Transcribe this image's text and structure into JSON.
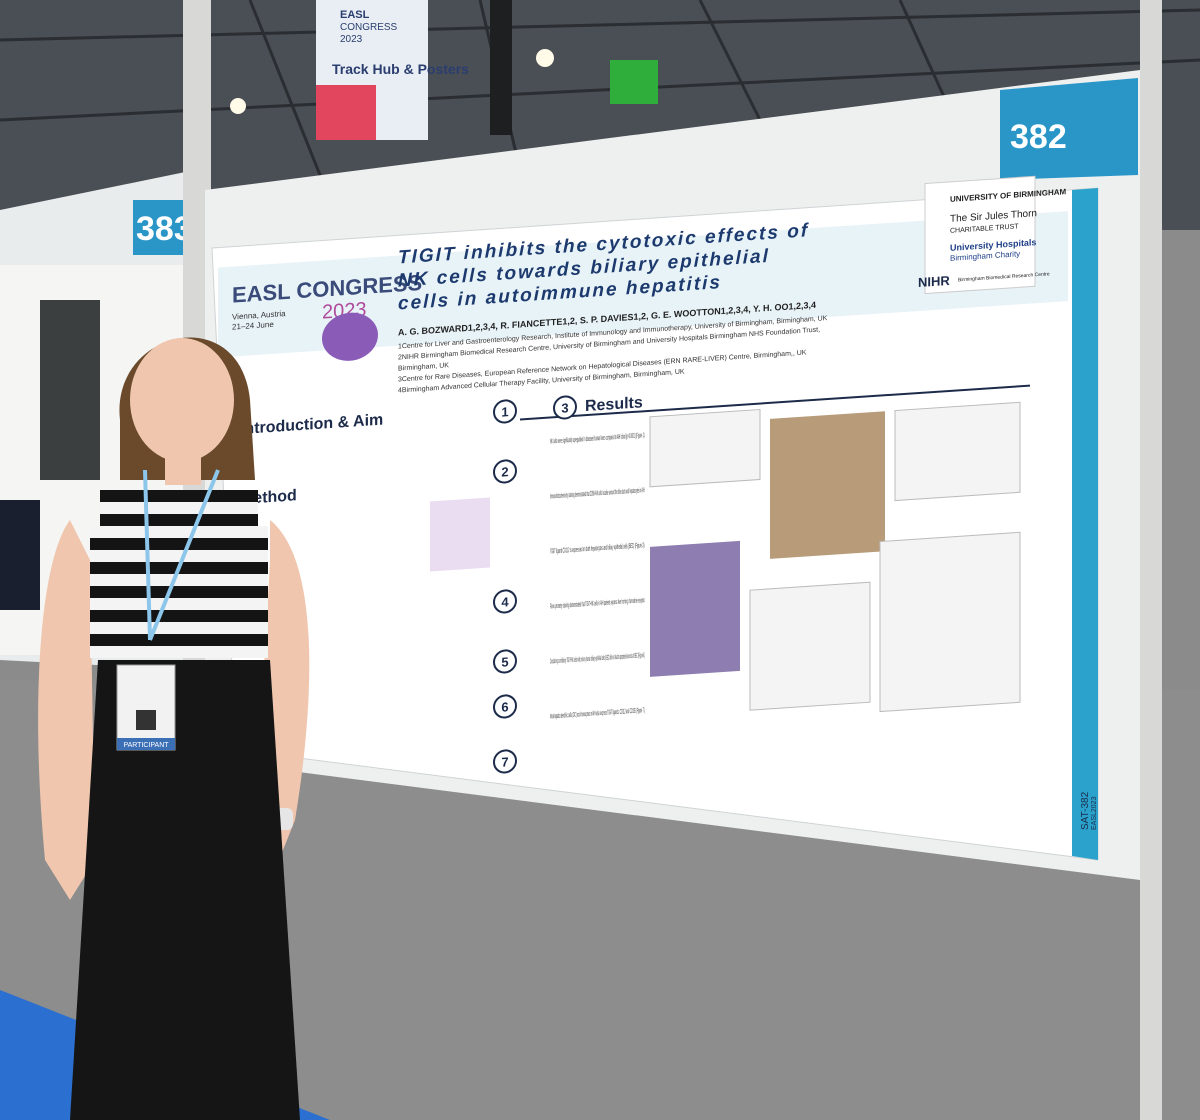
{
  "signs": {
    "left_board": "383",
    "right_board": "382",
    "banner_line1": "EASL",
    "banner_line2": "CONGRESS",
    "banner_line3": "2023",
    "banner_main": "Track Hub & Posters"
  },
  "poster": {
    "logo": {
      "name": "EASL CONGRESS",
      "year": "2023",
      "place": "Vienna, Austria",
      "dates": "21–24 June"
    },
    "title_lines": [
      "TIGIT inhibits the cytotoxic effects of",
      "NK cells towards biliary epithelial",
      "cells in autoimmune hepatitis"
    ],
    "authors": "A. G. BOZWARD1,2,3,4, R. FIANCETTE1,2, S. P. DAVIES1,2, G. E. WOOTTON1,2,3,4, Y. H. OO1,2,3,4",
    "affiliations": [
      "1Centre for Liver and Gastroenterology Research, Institute of Immunology and Immunotherapy, University of Birmingham, Birmingham, UK",
      "2NIHR Birmingham Biomedical Research Centre, University of Birmingham and University Hospitals Birmingham NHS Foundation Trust,",
      "Birmingham, UK",
      "3Centre for Rare Diseases, European Reference Network on Hepatological Diseases (ERN RARE-LIVER) Centre, Birmingham,, UK",
      "4Birmingham Advanced Cellular Therapy Facility, University of Birmingham, Birmingham, UK"
    ],
    "sponsors": [
      "UNIVERSITY OF BIRMINGHAM",
      "The Sir Jules Thorn",
      "CHARITABLE TRUST",
      "University Hospitals",
      "Birmingham Charity",
      "NIHR",
      "Birmingham Biomedical Research Centre"
    ],
    "sections": [
      "Introduction & Aim",
      "Method",
      "Results"
    ],
    "steps": [
      "1",
      "2",
      "3",
      "4",
      "5",
      "6",
      "7"
    ],
    "results_bullets": [
      "NK cells were significantly upregulated in diseased human livers compared to AIH blood (p<0.0001) (Figure 1).",
      "Immunohistochemistry staining demonstrated that CD56+NK cells localise around the bile ducts and hepatocytes in AIH.",
      "TIGIT ligand CD112 is expressed on both hepatocytes and biliary epithelial cells (BEC) (Figure 3).",
      "Flow cytometry staining demonstrated that TIGIT+NK cells in AIH patients express liver homing chemokine receptor.",
      "Coculturing co-inhibitory TIGIT+NK cells with primary human biliary epithelial cells (BEC) did not lead to apoptosis/necrosis of BEC (Figure 6).",
      "Intrahepatic dendritic cells (DC) and monocytes in AIH also express TIGIT ligands, CD112 and CD155 (Figure 7)."
    ],
    "code": "SAT-382",
    "footer": "EASL2023"
  },
  "badge": {
    "label": "PARTICIPANT"
  }
}
